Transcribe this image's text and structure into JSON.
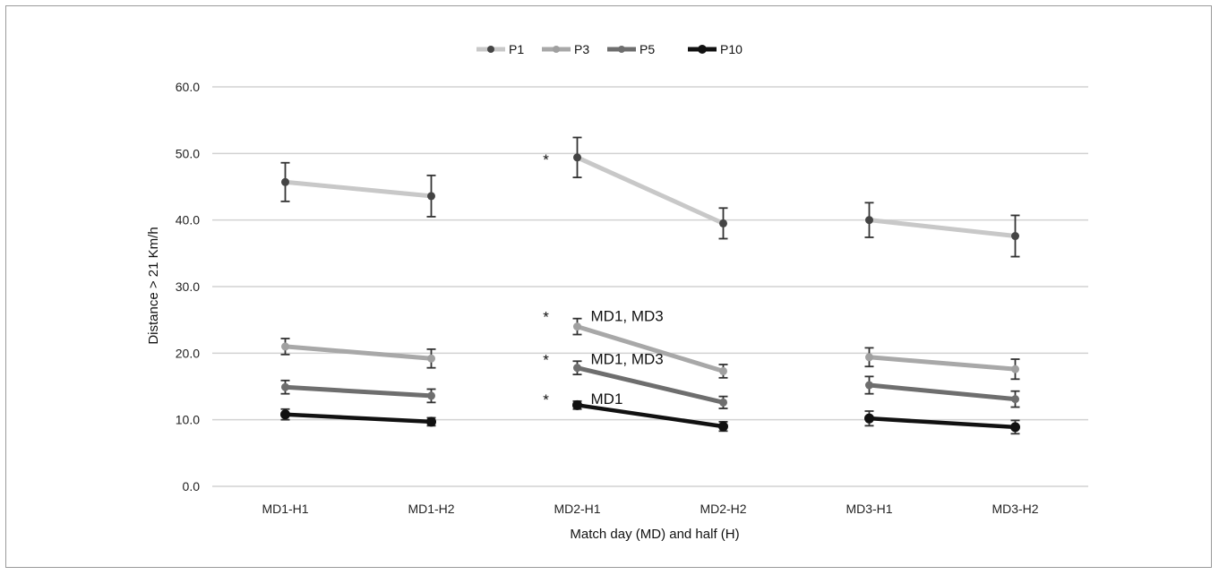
{
  "chart_data": {
    "type": "line",
    "title": "",
    "xlabel": "Match day (MD) and half (H)",
    "ylabel": "Distance > 21 Km/h",
    "ylim": [
      0,
      60
    ],
    "yticks": [
      "0.0",
      "10.0",
      "20.0",
      "30.0",
      "40.0",
      "50.0",
      "60.0"
    ],
    "grid": true,
    "legend_position": "top",
    "categories": [
      "MD1-H1",
      "MD1-H2",
      "MD2-H1",
      "MD2-H2",
      "MD3-H1",
      "MD3-H2"
    ],
    "series": [
      {
        "name": "P1",
        "line_color": "#c8c8c8",
        "marker_color": "#444444",
        "values": [
          45.7,
          43.6,
          49.4,
          39.5,
          40.0,
          37.6
        ],
        "errors": [
          2.9,
          3.1,
          3.0,
          2.3,
          2.6,
          3.1
        ]
      },
      {
        "name": "P3",
        "line_color": "#a8a8a8",
        "marker_color": "#a0a0a0",
        "values": [
          21.0,
          19.2,
          24.0,
          17.3,
          19.4,
          17.6
        ],
        "errors": [
          1.2,
          1.4,
          1.2,
          1.0,
          1.4,
          1.5
        ]
      },
      {
        "name": "P5",
        "line_color": "#6e6e6e",
        "marker_color": "#6e6e6e",
        "values": [
          14.9,
          13.6,
          17.8,
          12.6,
          15.2,
          13.1
        ],
        "errors": [
          1.0,
          1.0,
          1.0,
          0.9,
          1.3,
          1.2
        ]
      },
      {
        "name": "P10",
        "line_color": "#111111",
        "marker_color": "#111111",
        "values": [
          10.8,
          9.7,
          12.2,
          9.0,
          10.2,
          8.9
        ],
        "errors": [
          0.8,
          0.6,
          0.6,
          0.7,
          1.1,
          1.0
        ]
      }
    ],
    "annotations": [
      {
        "category": "MD2-H1",
        "series": "P1",
        "marker": "*",
        "text": ""
      },
      {
        "category": "MD2-H1",
        "series": "P3",
        "marker": "*",
        "text": "MD1, MD3"
      },
      {
        "category": "MD2-H1",
        "series": "P5",
        "marker": "*",
        "text": "MD1, MD3"
      },
      {
        "category": "MD2-H1",
        "series": "P10",
        "marker": "*",
        "text": "MD1"
      }
    ]
  }
}
